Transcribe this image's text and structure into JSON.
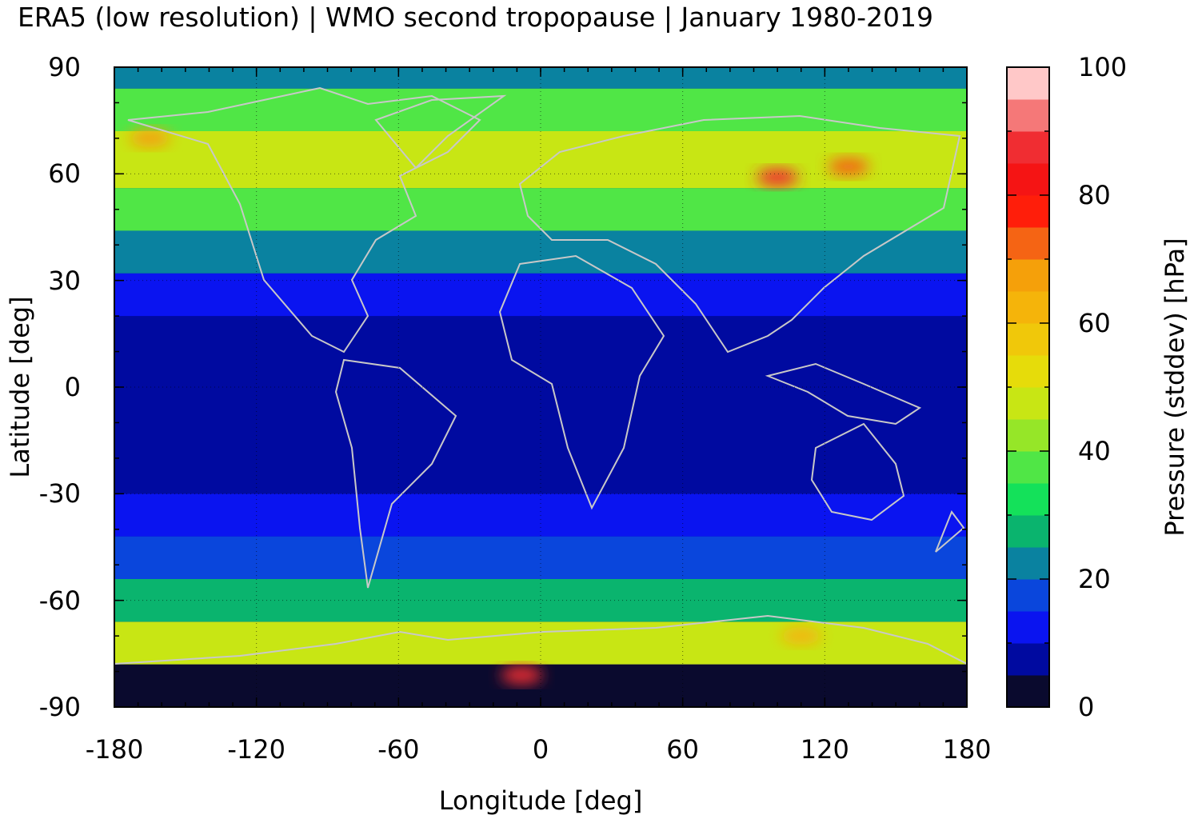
{
  "title": "ERA5 (low resolution) | WMO second tropopause | January 1980-2019",
  "chart_data": {
    "type": "heatmap",
    "xlabel": "Longitude [deg]",
    "ylabel": "Latitude [deg]",
    "colorbar_label": "Pressure (stddev) [hPa]",
    "xlim": [
      -180,
      180
    ],
    "ylim": [
      -90,
      90
    ],
    "zlim": [
      0,
      100
    ],
    "x_ticks": [
      "-180",
      "-120",
      "-60",
      "0",
      "60",
      "120",
      "180"
    ],
    "y_ticks": [
      "90",
      "60",
      "30",
      "0",
      "-30",
      "-60",
      "-90"
    ],
    "colorbar_ticks": [
      "100",
      "80",
      "60",
      "40",
      "20",
      "0"
    ],
    "colorbar_colors": [
      "#0a0a2e",
      "#000aa0",
      "#0a14f0",
      "#0a46dc",
      "#0a82a0",
      "#0ab46e",
      "#14e15a",
      "#50e646",
      "#96e628",
      "#c8e614",
      "#e6dc0a",
      "#f0c80a",
      "#f5b40a",
      "#f5a00a",
      "#f56414",
      "#ff1e0a",
      "#f51414",
      "#f02d32",
      "#f57878",
      "#ffc8c8"
    ],
    "grid": true,
    "latitude_bands": [
      {
        "lat_range": [
          -90,
          -78
        ],
        "stddev_hpa": 3
      },
      {
        "lat_range": [
          -78,
          -66
        ],
        "stddev_hpa": 45
      },
      {
        "lat_range": [
          -66,
          -54
        ],
        "stddev_hpa": 25
      },
      {
        "lat_range": [
          -54,
          -42
        ],
        "stddev_hpa": 15
      },
      {
        "lat_range": [
          -42,
          -30
        ],
        "stddev_hpa": 12
      },
      {
        "lat_range": [
          -30,
          20
        ],
        "stddev_hpa": 7
      },
      {
        "lat_range": [
          20,
          32
        ],
        "stddev_hpa": 12
      },
      {
        "lat_range": [
          32,
          44
        ],
        "stddev_hpa": 20
      },
      {
        "lat_range": [
          44,
          56
        ],
        "stddev_hpa": 35
      },
      {
        "lat_range": [
          56,
          72
        ],
        "stddev_hpa": 48
      },
      {
        "lat_range": [
          72,
          84
        ],
        "stddev_hpa": 35
      },
      {
        "lat_range": [
          84,
          90
        ],
        "stddev_hpa": 22
      }
    ],
    "hotspots": [
      {
        "lon": 100,
        "lat": 59,
        "stddev_hpa": 88
      },
      {
        "lon": 130,
        "lat": 62,
        "stddev_hpa": 70
      },
      {
        "lon": -165,
        "lat": 70,
        "stddev_hpa": 65
      },
      {
        "lon": 110,
        "lat": -70,
        "stddev_hpa": 60
      },
      {
        "lon": -8,
        "lat": -81,
        "stddev_hpa": 85
      }
    ]
  }
}
